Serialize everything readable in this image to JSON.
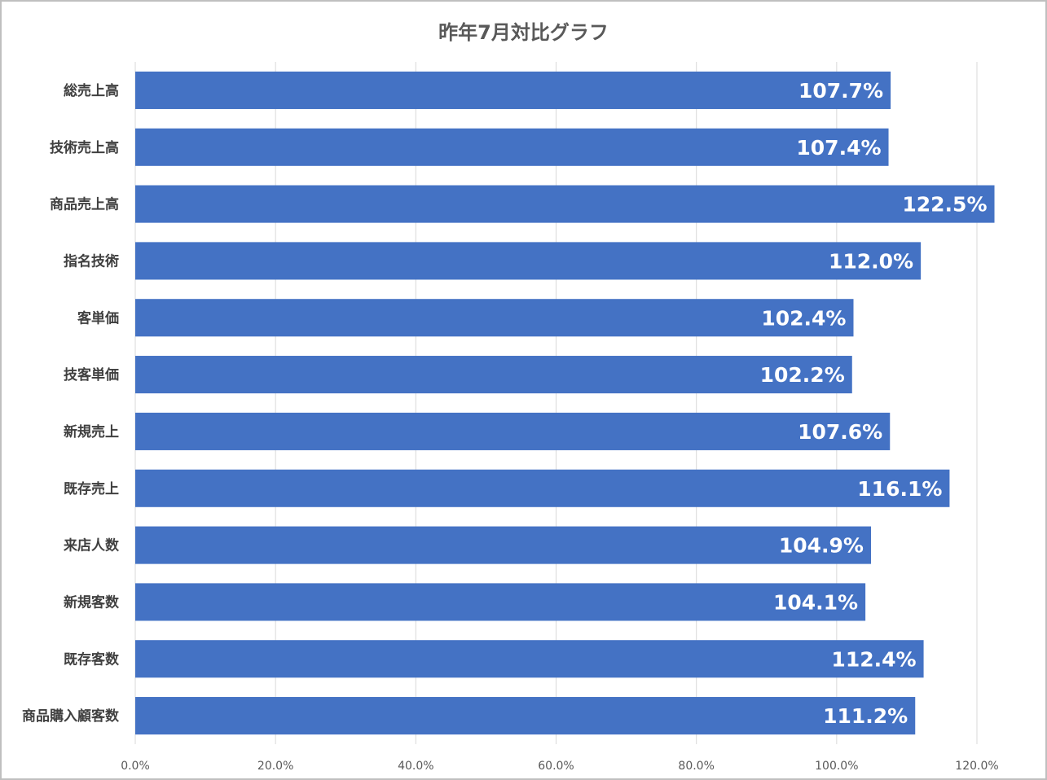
{
  "chart_data": {
    "type": "bar",
    "orientation": "horizontal",
    "title": "昨年7月対比グラフ",
    "categories": [
      "総売上高",
      "技術売上高",
      "商品売上高",
      "指名技術",
      "客単価",
      "技客単価",
      "新規売上",
      "既存売上",
      "来店人数",
      "新規客数",
      "既存客数",
      "商品購入顧客数"
    ],
    "values": [
      107.7,
      107.4,
      122.5,
      112.0,
      102.4,
      102.2,
      107.6,
      116.1,
      104.9,
      104.1,
      112.4,
      111.2
    ],
    "data_labels": [
      "107.7%",
      "107.4%",
      "122.5%",
      "112.0%",
      "102.4%",
      "102.2%",
      "107.6%",
      "116.1%",
      "104.9%",
      "104.1%",
      "112.4%",
      "111.2%"
    ],
    "x_ticks": [
      "0.0%",
      "20.0%",
      "40.0%",
      "60.0%",
      "80.0%",
      "100.0%",
      "120.0%"
    ],
    "xlim": [
      0,
      120
    ],
    "xlabel": "",
    "ylabel": "",
    "grid": "vertical",
    "legend": "none",
    "bar_color": "#4472C4",
    "gridline_color": "#D9D9D9"
  }
}
